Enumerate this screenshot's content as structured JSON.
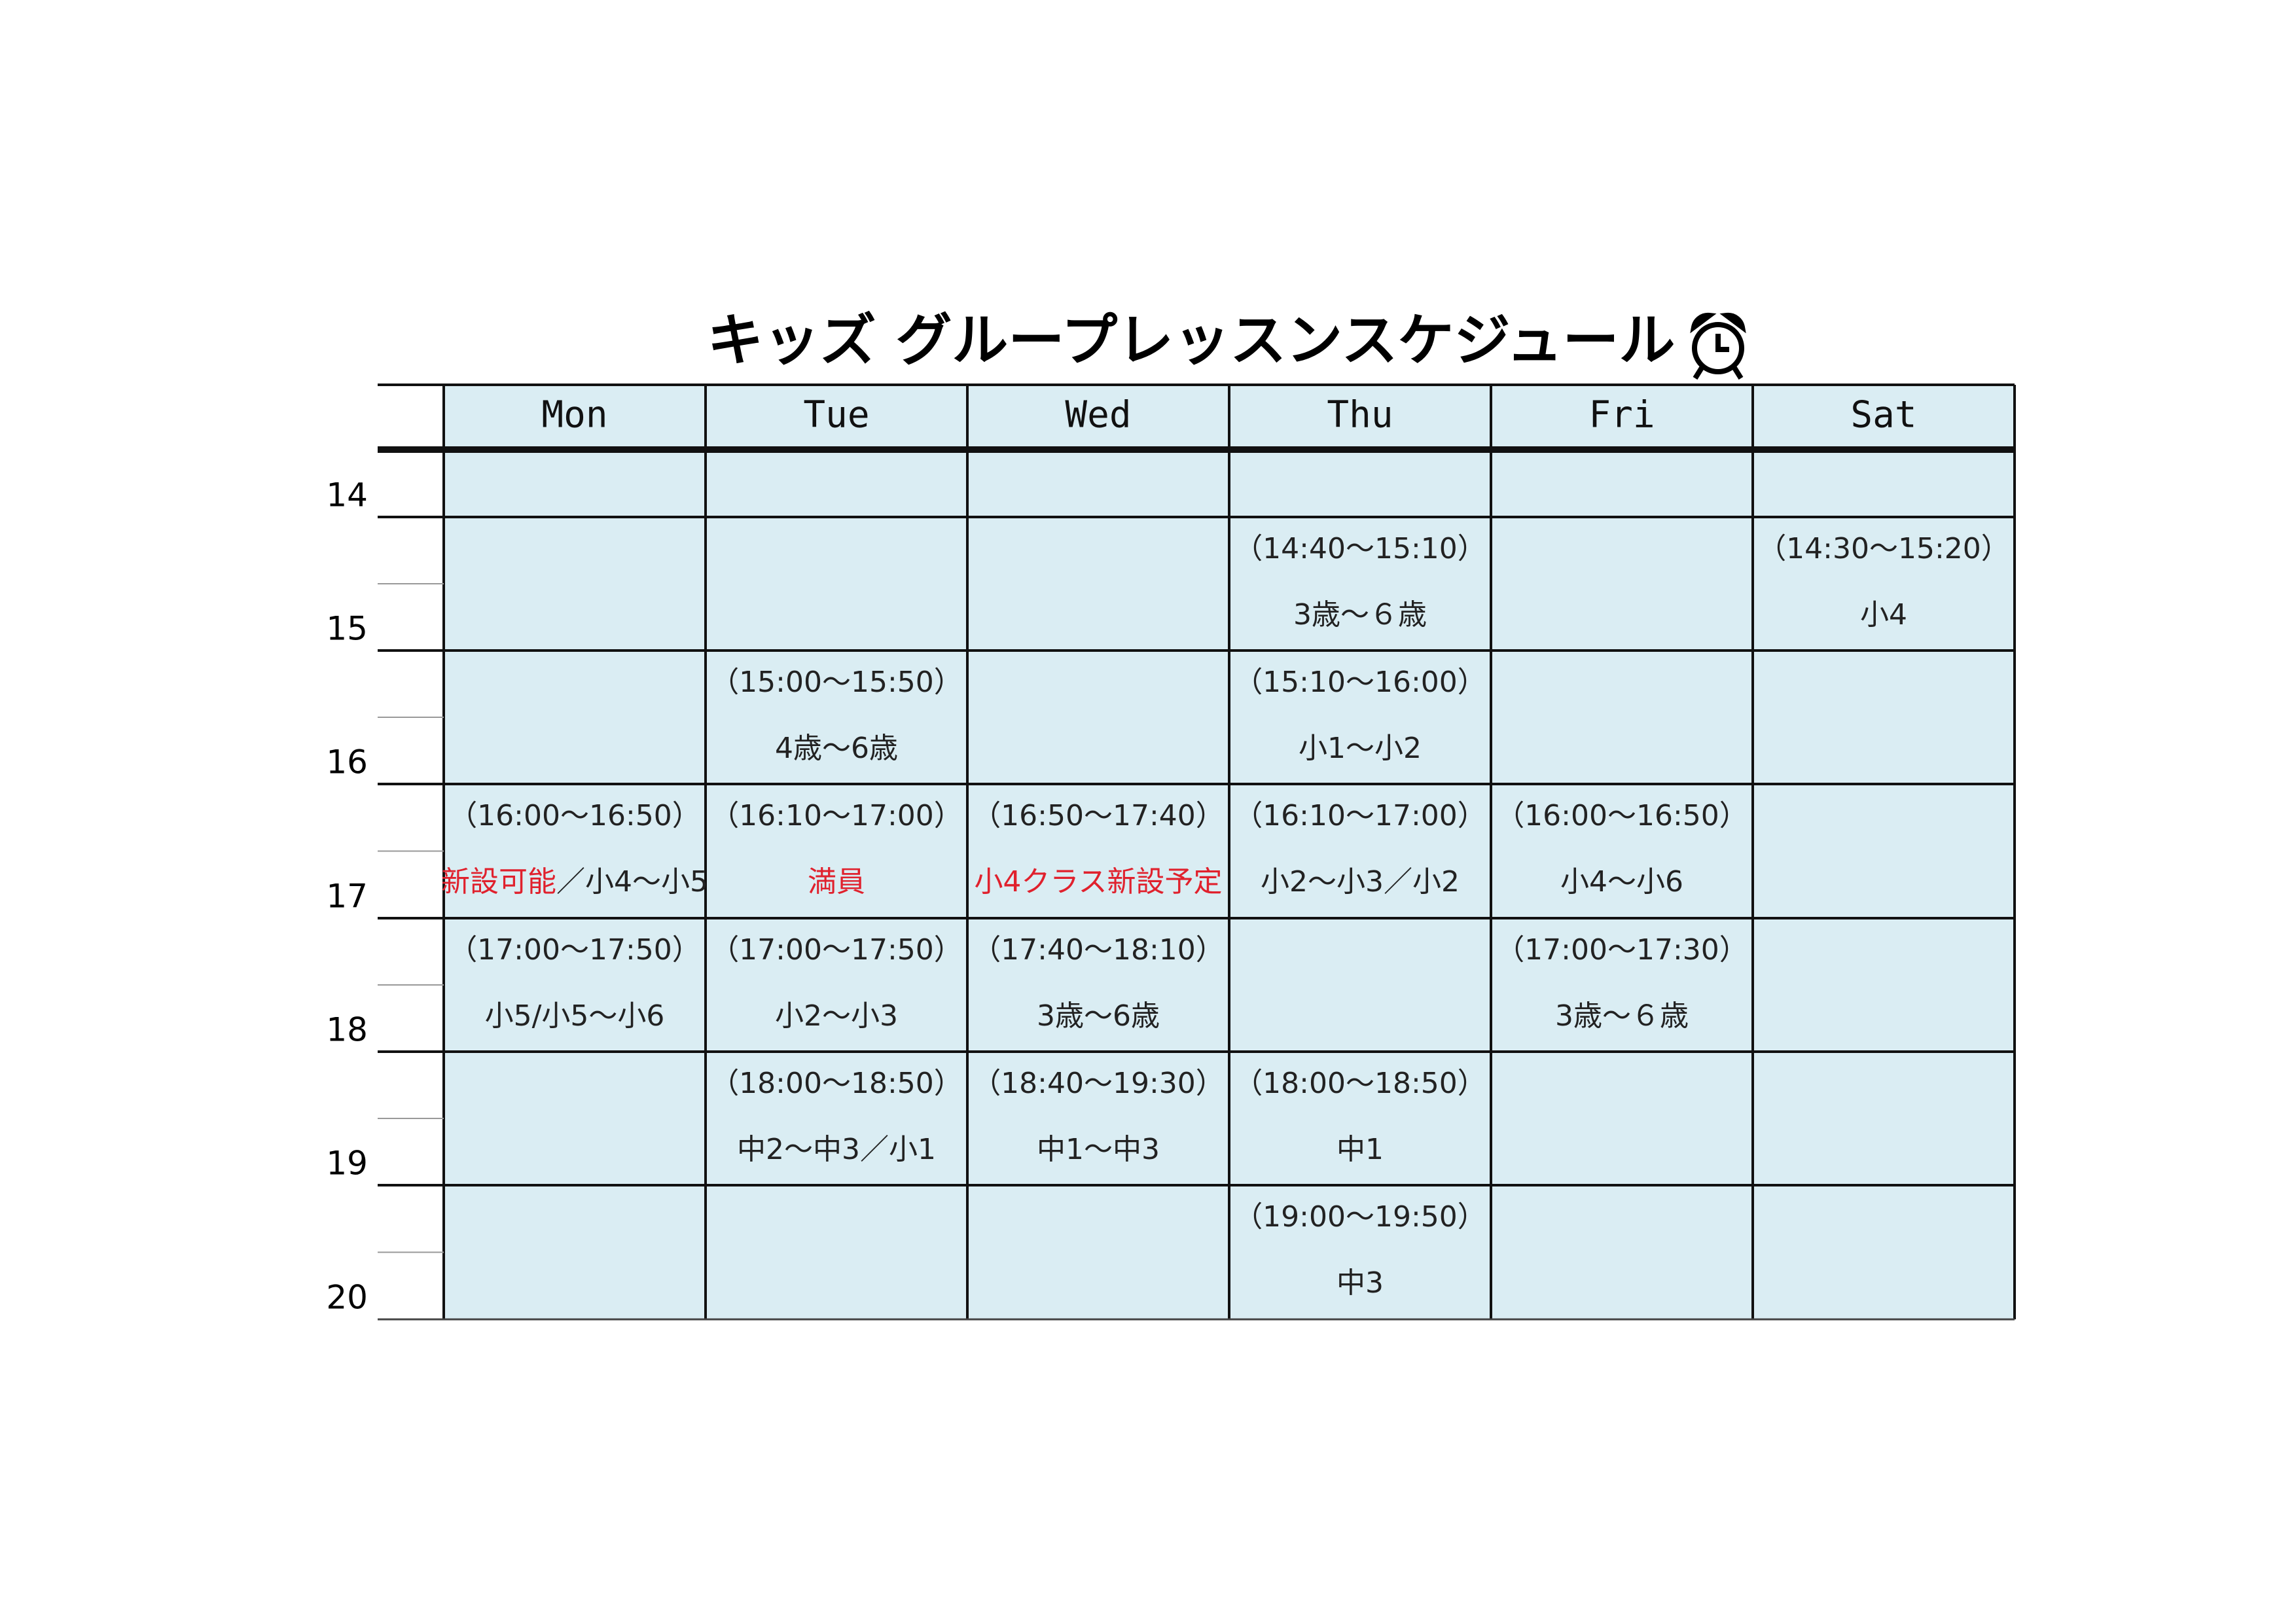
{
  "header": {
    "title": "キッズ グループレッスンスケジュール"
  },
  "days": [
    "Mon",
    "Tue",
    "Wed",
    "Thu",
    "Fri",
    "Sat"
  ],
  "hours": [
    14,
    15,
    16,
    17,
    18,
    19,
    20
  ],
  "rows": [
    [
      null,
      null,
      null,
      null,
      null,
      null
    ],
    [
      null,
      null,
      null,
      {
        "time": "（14:40〜15:10）",
        "label": "3歳〜６歳"
      },
      null,
      {
        "time": "（14:30〜15:20）",
        "label": "小4"
      }
    ],
    [
      null,
      {
        "time": "（15:00〜15:50）",
        "label": "4歳〜6歳"
      },
      null,
      {
        "time": "（15:10〜16:00）",
        "label": "小1〜小2"
      },
      null,
      null
    ],
    [
      {
        "time": "（16:00〜16:50）",
        "note": "新設可能",
        "label": "／小4〜小5"
      },
      {
        "time": "（16:10〜17:00）",
        "note": "満員"
      },
      {
        "time": "（16:50〜17:40）",
        "note": "小4クラス新設予定"
      },
      {
        "time": "（16:10〜17:00）",
        "label": "小2〜小3／小2"
      },
      {
        "time": "（16:00〜16:50）",
        "label": "小4〜小6"
      },
      null
    ],
    [
      {
        "time": "（17:00〜17:50）",
        "label": "小5/小5〜小6"
      },
      {
        "time": "（17:00〜17:50）",
        "label": "小2〜小3"
      },
      {
        "time": "（17:40〜18:10）",
        "label": "3歳〜6歳"
      },
      null,
      {
        "time": "（17:00〜17:30）",
        "label": "3歳〜６歳"
      },
      null
    ],
    [
      null,
      {
        "time": "（18:00〜18:50）",
        "label": "中2〜中3／小1"
      },
      {
        "time": "（18:40〜19:30）",
        "label": "中1〜中3"
      },
      {
        "time": "（18:00〜18:50）",
        "label": "中1"
      },
      null,
      null
    ],
    [
      null,
      null,
      null,
      {
        "time": "（19:00〜19:50）",
        "label": "中3"
      },
      null,
      null
    ]
  ]
}
